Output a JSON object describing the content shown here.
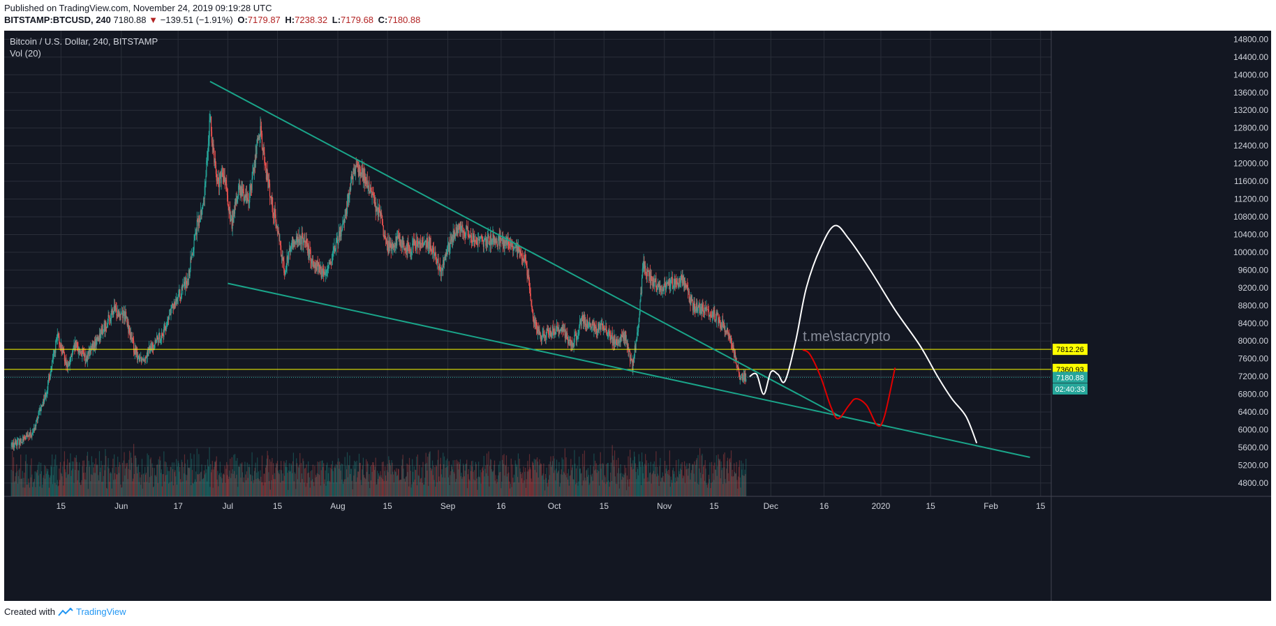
{
  "header": {
    "published": "Published on TradingView.com, November 24, 2019 09:19:28 UTC",
    "symbol": "BITSTAMP:BTCUSD, 240",
    "last": "7180.88",
    "change_arrow": "▼",
    "change": "−139.51 (−1.91%)",
    "o_label": "O:",
    "o_value": "7179.87",
    "h_label": "H:",
    "h_value": "7238.32",
    "l_label": "L:",
    "l_value": "7179.68",
    "c_label": "C:",
    "c_value": "7180.88"
  },
  "pane": {
    "title": "Bitcoin / U.S. Dollar, 240, BITSTAMP",
    "volume_label": "Vol (20)"
  },
  "footer": {
    "created_with": "Created with",
    "brand": "TradingView"
  },
  "colors": {
    "background": "#131722",
    "grid": "#2a2e39",
    "up": "#26a69a",
    "down": "#ef5350",
    "trendline": "#1aa58a",
    "level": "#ffff00",
    "projection_white": "#ffffff",
    "projection_red": "#e00000",
    "axis_text": "#d1d4dc",
    "watermark": "#8a8f9c"
  },
  "chart_data": {
    "type": "candlestick",
    "title": "Bitcoin / U.S. Dollar, 240, BITSTAMP",
    "timeframe": "240",
    "y_axis": {
      "ticks": [
        4800,
        5200,
        5600,
        6000,
        6400,
        6800,
        7200,
        7600,
        8000,
        8400,
        8800,
        9200,
        9600,
        10000,
        10400,
        10800,
        11200,
        11600,
        12000,
        12400,
        12800,
        13200,
        13600,
        14000,
        14400,
        14800
      ],
      "tick_labels": [
        "4800.00",
        "5200.00",
        "5600.00",
        "6000.00",
        "6400.00",
        "6800.00",
        "7200.00",
        "7600.00",
        "8000.00",
        "8400.00",
        "8800.00",
        "9200.00",
        "9600.00",
        "10000.00",
        "10400.00",
        "10800.00",
        "11200.00",
        "11600.00",
        "12000.00",
        "12400.00",
        "12800.00",
        "13200.00",
        "13600.00",
        "14000.00",
        "14400.00",
        "14800.00"
      ]
    },
    "x_axis": {
      "ticks": [
        {
          "label": "15",
          "date": "2019-05-15"
        },
        {
          "label": "Jun",
          "date": "2019-06-01"
        },
        {
          "label": "17",
          "date": "2019-06-17"
        },
        {
          "label": "Jul",
          "date": "2019-07-01"
        },
        {
          "label": "15",
          "date": "2019-07-15"
        },
        {
          "label": "Aug",
          "date": "2019-08-01"
        },
        {
          "label": "15",
          "date": "2019-08-15"
        },
        {
          "label": "Sep",
          "date": "2019-09-01"
        },
        {
          "label": "16",
          "date": "2019-09-16"
        },
        {
          "label": "Oct",
          "date": "2019-10-01"
        },
        {
          "label": "15",
          "date": "2019-10-15"
        },
        {
          "label": "Nov",
          "date": "2019-11-01"
        },
        {
          "label": "15",
          "date": "2019-11-15"
        },
        {
          "label": "Dec",
          "date": "2019-12-01"
        },
        {
          "label": "16",
          "date": "2019-12-16"
        },
        {
          "label": "2020",
          "date": "2020-01-01"
        },
        {
          "label": "15",
          "date": "2020-01-15"
        },
        {
          "label": "Feb",
          "date": "2020-02-01"
        },
        {
          "label": "15",
          "date": "2020-02-15"
        }
      ]
    },
    "price_path": [
      [
        "2019-05-01",
        5650
      ],
      [
        "2019-05-07",
        5900
      ],
      [
        "2019-05-11",
        6900
      ],
      [
        "2019-05-14",
        8100
      ],
      [
        "2019-05-17",
        7400
      ],
      [
        "2019-05-19",
        7900
      ],
      [
        "2019-05-22",
        7600
      ],
      [
        "2019-05-25",
        8000
      ],
      [
        "2019-05-30",
        8700
      ],
      [
        "2019-06-02",
        8600
      ],
      [
        "2019-06-05",
        7700
      ],
      [
        "2019-06-07",
        7600
      ],
      [
        "2019-06-10",
        7900
      ],
      [
        "2019-06-13",
        8200
      ],
      [
        "2019-06-16",
        8900
      ],
      [
        "2019-06-18",
        9100
      ],
      [
        "2019-06-20",
        9500
      ],
      [
        "2019-06-22",
        10500
      ],
      [
        "2019-06-24",
        11000
      ],
      [
        "2019-06-26",
        13000
      ],
      [
        "2019-06-28",
        11600
      ],
      [
        "2019-06-30",
        11700
      ],
      [
        "2019-07-02",
        10600
      ],
      [
        "2019-07-04",
        11400
      ],
      [
        "2019-07-07",
        11200
      ],
      [
        "2019-07-10",
        12800
      ],
      [
        "2019-07-12",
        11700
      ],
      [
        "2019-07-15",
        10500
      ],
      [
        "2019-07-17",
        9600
      ],
      [
        "2019-07-19",
        10200
      ],
      [
        "2019-07-22",
        10300
      ],
      [
        "2019-07-25",
        9800
      ],
      [
        "2019-07-28",
        9500
      ],
      [
        "2019-07-31",
        10000
      ],
      [
        "2019-08-03",
        10800
      ],
      [
        "2019-08-05",
        11700
      ],
      [
        "2019-08-07",
        11900
      ],
      [
        "2019-08-10",
        11400
      ],
      [
        "2019-08-13",
        10800
      ],
      [
        "2019-08-15",
        10100
      ],
      [
        "2019-08-18",
        10300
      ],
      [
        "2019-08-21",
        10100
      ],
      [
        "2019-08-24",
        10200
      ],
      [
        "2019-08-27",
        10200
      ],
      [
        "2019-08-30",
        9600
      ],
      [
        "2019-09-02",
        10300
      ],
      [
        "2019-09-05",
        10600
      ],
      [
        "2019-09-08",
        10300
      ],
      [
        "2019-09-11",
        10200
      ],
      [
        "2019-09-14",
        10300
      ],
      [
        "2019-09-18",
        10200
      ],
      [
        "2019-09-21",
        10000
      ],
      [
        "2019-09-23",
        9800
      ],
      [
        "2019-09-25",
        8500
      ],
      [
        "2019-09-27",
        8100
      ],
      [
        "2019-09-30",
        8200
      ],
      [
        "2019-10-03",
        8300
      ],
      [
        "2019-10-06",
        7900
      ],
      [
        "2019-10-09",
        8500
      ],
      [
        "2019-10-12",
        8300
      ],
      [
        "2019-10-15",
        8300
      ],
      [
        "2019-10-18",
        8000
      ],
      [
        "2019-10-21",
        8100
      ],
      [
        "2019-10-23",
        7400
      ],
      [
        "2019-10-25",
        8600
      ],
      [
        "2019-10-26",
        9700
      ],
      [
        "2019-10-28",
        9400
      ],
      [
        "2019-10-31",
        9200
      ],
      [
        "2019-11-03",
        9300
      ],
      [
        "2019-11-06",
        9400
      ],
      [
        "2019-11-09",
        8800
      ],
      [
        "2019-11-12",
        8700
      ],
      [
        "2019-11-15",
        8600
      ],
      [
        "2019-11-18",
        8300
      ],
      [
        "2019-11-20",
        8000
      ],
      [
        "2019-11-22",
        7200
      ],
      [
        "2019-11-24",
        7180
      ]
    ],
    "levels": [
      {
        "label": "7812.26",
        "value": 7812.26
      },
      {
        "label": "7360.93",
        "value": 7360.93
      }
    ],
    "price_labels": [
      {
        "label": "7180.88",
        "value": 7180.88
      },
      {
        "label": "02:40:33",
        "value": 6920
      }
    ],
    "trendlines": [
      {
        "name": "upper",
        "from": [
          "2019-06-26",
          13850
        ],
        "to": [
          "2019-12-21",
          6280
        ]
      },
      {
        "name": "lower",
        "from": [
          "2019-07-01",
          9300
        ],
        "to": [
          "2020-02-12",
          5380
        ]
      }
    ],
    "projection_white": [
      [
        "2019-11-25",
        7200
      ],
      [
        "2019-11-27",
        7250
      ],
      [
        "2019-11-29",
        6800
      ],
      [
        "2019-12-01",
        7300
      ],
      [
        "2019-12-03",
        7250
      ],
      [
        "2019-12-05",
        7100
      ],
      [
        "2019-12-08",
        8000
      ],
      [
        "2019-12-11",
        9200
      ],
      [
        "2019-12-15",
        10100
      ],
      [
        "2019-12-19",
        10600
      ],
      [
        "2019-12-23",
        10300
      ],
      [
        "2019-12-29",
        9600
      ],
      [
        "2020-01-05",
        8700
      ],
      [
        "2020-01-12",
        7900
      ],
      [
        "2020-01-17",
        7200
      ],
      [
        "2020-01-21",
        6700
      ],
      [
        "2020-01-25",
        6300
      ],
      [
        "2020-01-28",
        5700
      ]
    ],
    "projection_red": [
      [
        "2019-12-10",
        7800
      ],
      [
        "2019-12-12",
        7700
      ],
      [
        "2019-12-15",
        7200
      ],
      [
        "2019-12-18",
        6500
      ],
      [
        "2019-12-20",
        6250
      ],
      [
        "2019-12-23",
        6550
      ],
      [
        "2019-12-25",
        6700
      ],
      [
        "2019-12-28",
        6550
      ],
      [
        "2019-12-31",
        6100
      ],
      [
        "2020-01-02",
        6300
      ],
      [
        "2020-01-05",
        7400
      ]
    ],
    "watermark": "t.me\\stacrypto"
  }
}
